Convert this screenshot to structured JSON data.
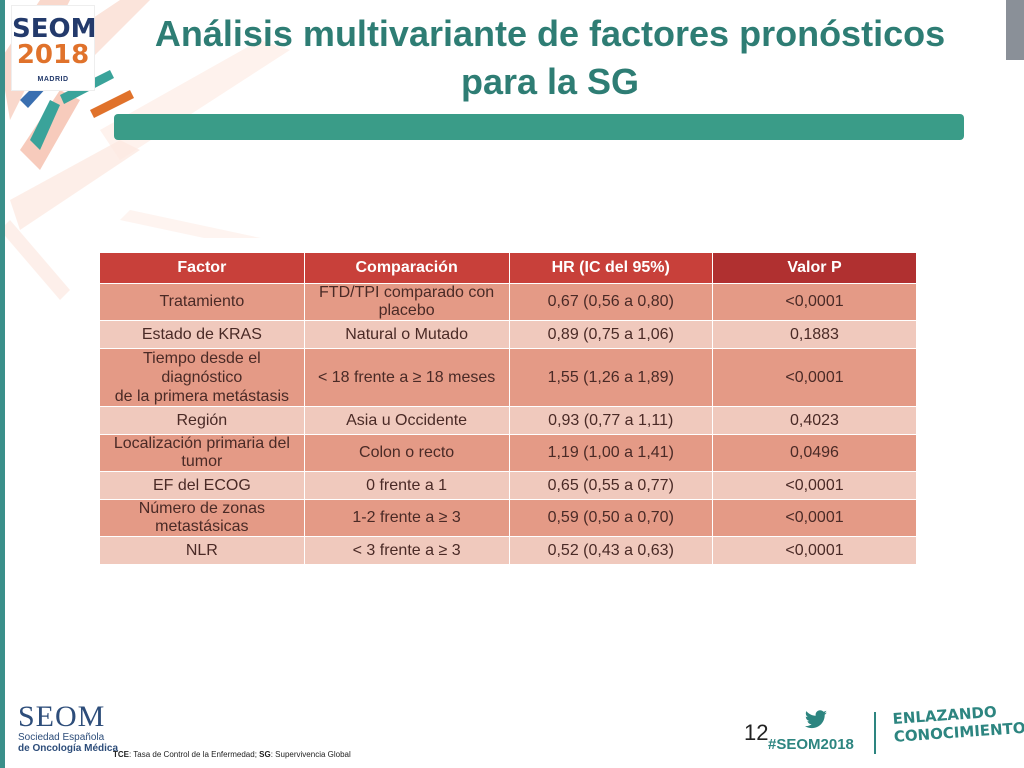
{
  "header": {
    "logo": {
      "brand": "SEOM",
      "year": "2018",
      "city": "MADRID"
    },
    "title_line1": "Análisis multivariante de factores pronósticos",
    "title_line2": "para la SG"
  },
  "table": {
    "headers": [
      "Factor",
      "Comparación",
      "HR (IC del 95%)",
      "Valor P"
    ],
    "rows": [
      {
        "factor": "Tratamiento",
        "comparacion": "FTD/TPI comparado con placebo",
        "hr": "0,67 (0,56 a 0,80)",
        "p": "<0,0001"
      },
      {
        "factor": "Estado de KRAS",
        "comparacion": "Natural o Mutado",
        "hr": "0,89 (0,75 a 1,06)",
        "p": "0,1883"
      },
      {
        "factor_line1": "Tiempo desde el diagnóstico",
        "factor_line2": "de la primera metástasis",
        "comparacion": "< 18 frente a ≥ 18 meses",
        "hr": "1,55 (1,26 a 1,89)",
        "p": "<0,0001"
      },
      {
        "factor": "Región",
        "comparacion": "Asia u Occidente",
        "hr": "0,93 (0,77 a 1,11)",
        "p": "0,4023"
      },
      {
        "factor": "Localización primaria del tumor",
        "comparacion": "Colon o recto",
        "hr": "1,19 (1,00 a 1,41)",
        "p": "0,0496"
      },
      {
        "factor": "EF del ECOG",
        "comparacion": "0 frente a 1",
        "hr": "0,65 (0,55 a 0,77)",
        "p": "<0,0001"
      },
      {
        "factor": "Número de zonas metastásicas",
        "comparacion": "1-2 frente a ≥ 3",
        "hr": "0,59 (0,50 a 0,70)",
        "p": "<0,0001"
      },
      {
        "factor": "NLR",
        "comparacion": "< 3 frente a ≥ 3",
        "hr": "0,52 (0,43 a 0,63)",
        "p": "<0,0001"
      }
    ]
  },
  "footer": {
    "org_name": "SEOM",
    "org_line1": "Sociedad  Española",
    "org_line2": "de Oncología Médica",
    "footnote_tce": "TCE",
    "footnote_tce_text": ": Tasa de Control de la Enfermedad; ",
    "footnote_sg": "SG",
    "footnote_sg_text": ": Supervivencia Global",
    "page_number": "12",
    "hashtag": "#SEOM2018",
    "slogan_line1": "ENLAZANDO",
    "slogan_line2": "CONOCIMIENTO"
  },
  "colors": {
    "title": "#2e7d74",
    "title_bar": "#3a9c88",
    "table_header": "#c8403a",
    "row_dark": "#e49a86",
    "row_light": "#f0c9bd"
  },
  "icons": [
    "twitter-icon"
  ]
}
